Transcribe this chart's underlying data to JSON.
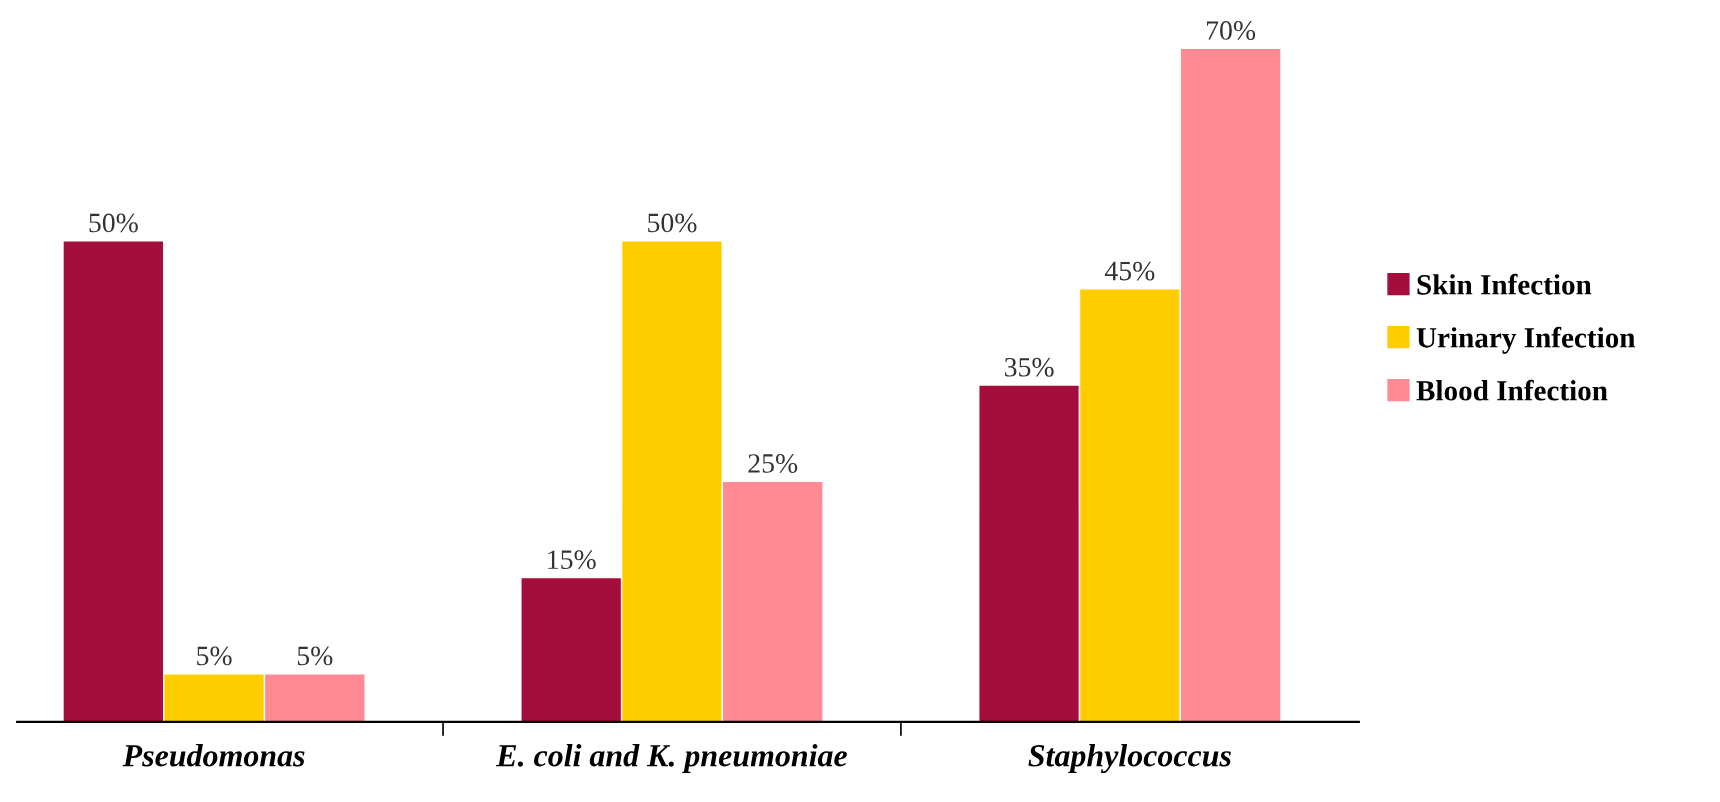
{
  "chart_data": {
    "type": "bar",
    "categories": [
      "Pseudomonas",
      "E. coli and K. pneumoniae",
      "Staphylococcus"
    ],
    "series": [
      {
        "name": "Skin Infection",
        "color": "#a50d3c",
        "values": [
          50,
          15,
          35
        ],
        "value_labels": [
          "50%",
          "15%",
          "35%"
        ]
      },
      {
        "name": "Urinary Infection",
        "color": "#ffcc00",
        "values": [
          5,
          50,
          45
        ],
        "value_labels": [
          "5%",
          "50%",
          "45%"
        ]
      },
      {
        "name": "Blood Infection",
        "color": "#ff8a94",
        "values": [
          5,
          25,
          70
        ],
        "value_labels": [
          "5%",
          "25%",
          "70%"
        ]
      }
    ],
    "legend": "right",
    "grid": false
  }
}
